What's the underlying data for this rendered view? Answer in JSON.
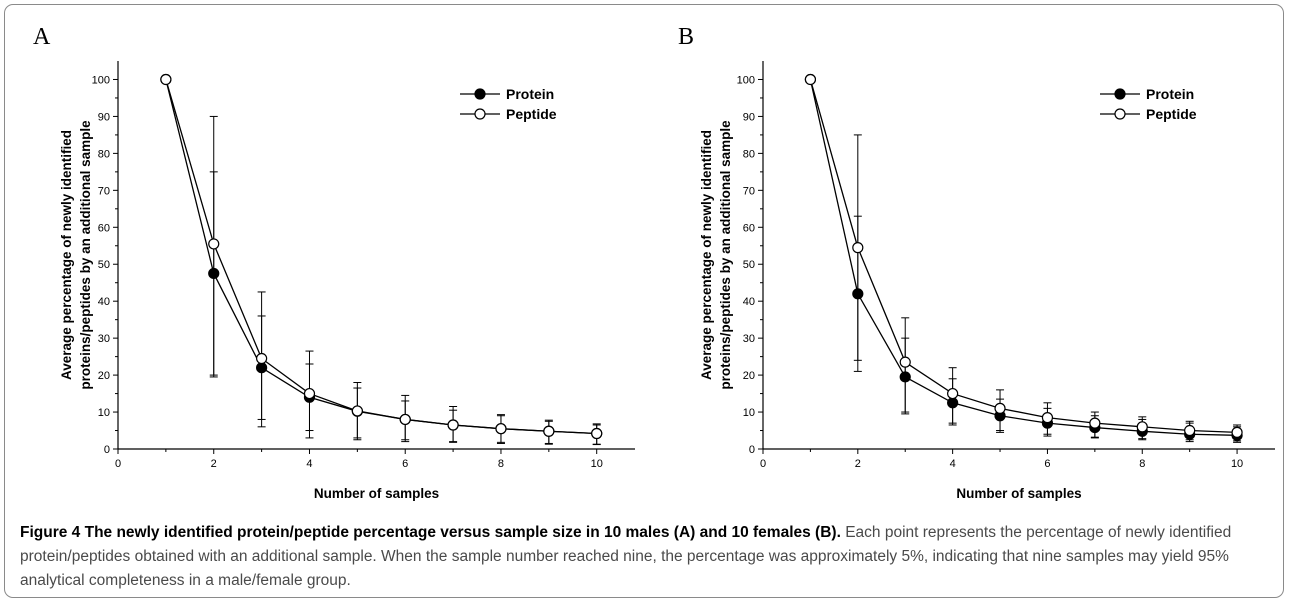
{
  "caption": {
    "title": "Figure 4 The newly identified protein/peptide percentage versus sample size in 10 males (A) and 10 females (B).",
    "body": "Each point represents the percentage of newly identified protein/peptides obtained with an additional sample. When the sample number reached nine, the percentage was approximately 5%, indicating that nine samples may yield 95% analytical completeness in a male/female group."
  },
  "colors": {
    "line": "#000000",
    "frame": "#8a8a8a"
  },
  "chart_data": [
    {
      "panel": "A",
      "type": "line",
      "xlabel": "Number of samples",
      "ylabel": "Average percentage of newly identified proteins/peptides by an additional sample",
      "xlim": [
        0,
        10.8
      ],
      "ylim": [
        0,
        105
      ],
      "xticks": [
        0,
        2,
        4,
        6,
        8,
        10
      ],
      "yticks": [
        0,
        10,
        20,
        30,
        40,
        50,
        60,
        70,
        80,
        90,
        100
      ],
      "legend_position": "top-right",
      "x": [
        1,
        2,
        3,
        4,
        5,
        6,
        7,
        8,
        9,
        10
      ],
      "series": [
        {
          "name": "Protein",
          "marker": "filled-circle",
          "values": [
            100,
            47.5,
            22,
            14,
            10.2,
            8,
            6.5,
            5.5,
            4.8,
            4.2
          ],
          "err_low": [
            100,
            20,
            8,
            5,
            3,
            2.5,
            2,
            1.8,
            1.5,
            1.3
          ],
          "err_high": [
            100,
            75,
            36,
            23,
            16.5,
            13,
            10.5,
            9,
            7.5,
            6.5
          ]
        },
        {
          "name": "Peptide",
          "marker": "open-circle",
          "values": [
            100,
            55.5,
            24.5,
            15,
            10.3,
            8,
            6.5,
            5.5,
            4.8,
            4.2
          ],
          "err_low": [
            100,
            19.5,
            6,
            3,
            2.5,
            2,
            1.8,
            1.5,
            1.3,
            1.2
          ],
          "err_high": [
            100,
            90,
            42.5,
            26.5,
            18,
            14.5,
            11.5,
            9.3,
            7.8,
            6.8
          ]
        }
      ]
    },
    {
      "panel": "B",
      "type": "line",
      "xlabel": "Number of samples",
      "ylabel": "Average percentage of newly identified proteins/peptides by an additional sample",
      "xlim": [
        0,
        10.8
      ],
      "ylim": [
        0,
        105
      ],
      "xticks": [
        0,
        2,
        4,
        6,
        8,
        10
      ],
      "yticks": [
        0,
        10,
        20,
        30,
        40,
        50,
        60,
        70,
        80,
        90,
        100
      ],
      "legend_position": "top-right",
      "x": [
        1,
        2,
        3,
        4,
        5,
        6,
        7,
        8,
        9,
        10
      ],
      "series": [
        {
          "name": "Protein",
          "marker": "filled-circle",
          "values": [
            100,
            42,
            19.5,
            12.5,
            9,
            7,
            5.8,
            4.8,
            4,
            3.7
          ],
          "err_low": [
            100,
            21,
            9.5,
            6.5,
            4.5,
            3.5,
            3,
            2.5,
            2,
            1.8
          ],
          "err_high": [
            100,
            63,
            30,
            19,
            13.5,
            11,
            9,
            8,
            7,
            6
          ]
        },
        {
          "name": "Peptide",
          "marker": "open-circle",
          "values": [
            100,
            54.5,
            23.5,
            15,
            11,
            8.5,
            7,
            6,
            5,
            4.5
          ],
          "err_low": [
            100,
            24,
            10,
            7,
            5,
            4,
            3.2,
            2.8,
            2.5,
            2.2
          ],
          "err_high": [
            100,
            85,
            35.5,
            22,
            16,
            12.5,
            10,
            8.7,
            7.5,
            6.5
          ]
        }
      ]
    }
  ]
}
